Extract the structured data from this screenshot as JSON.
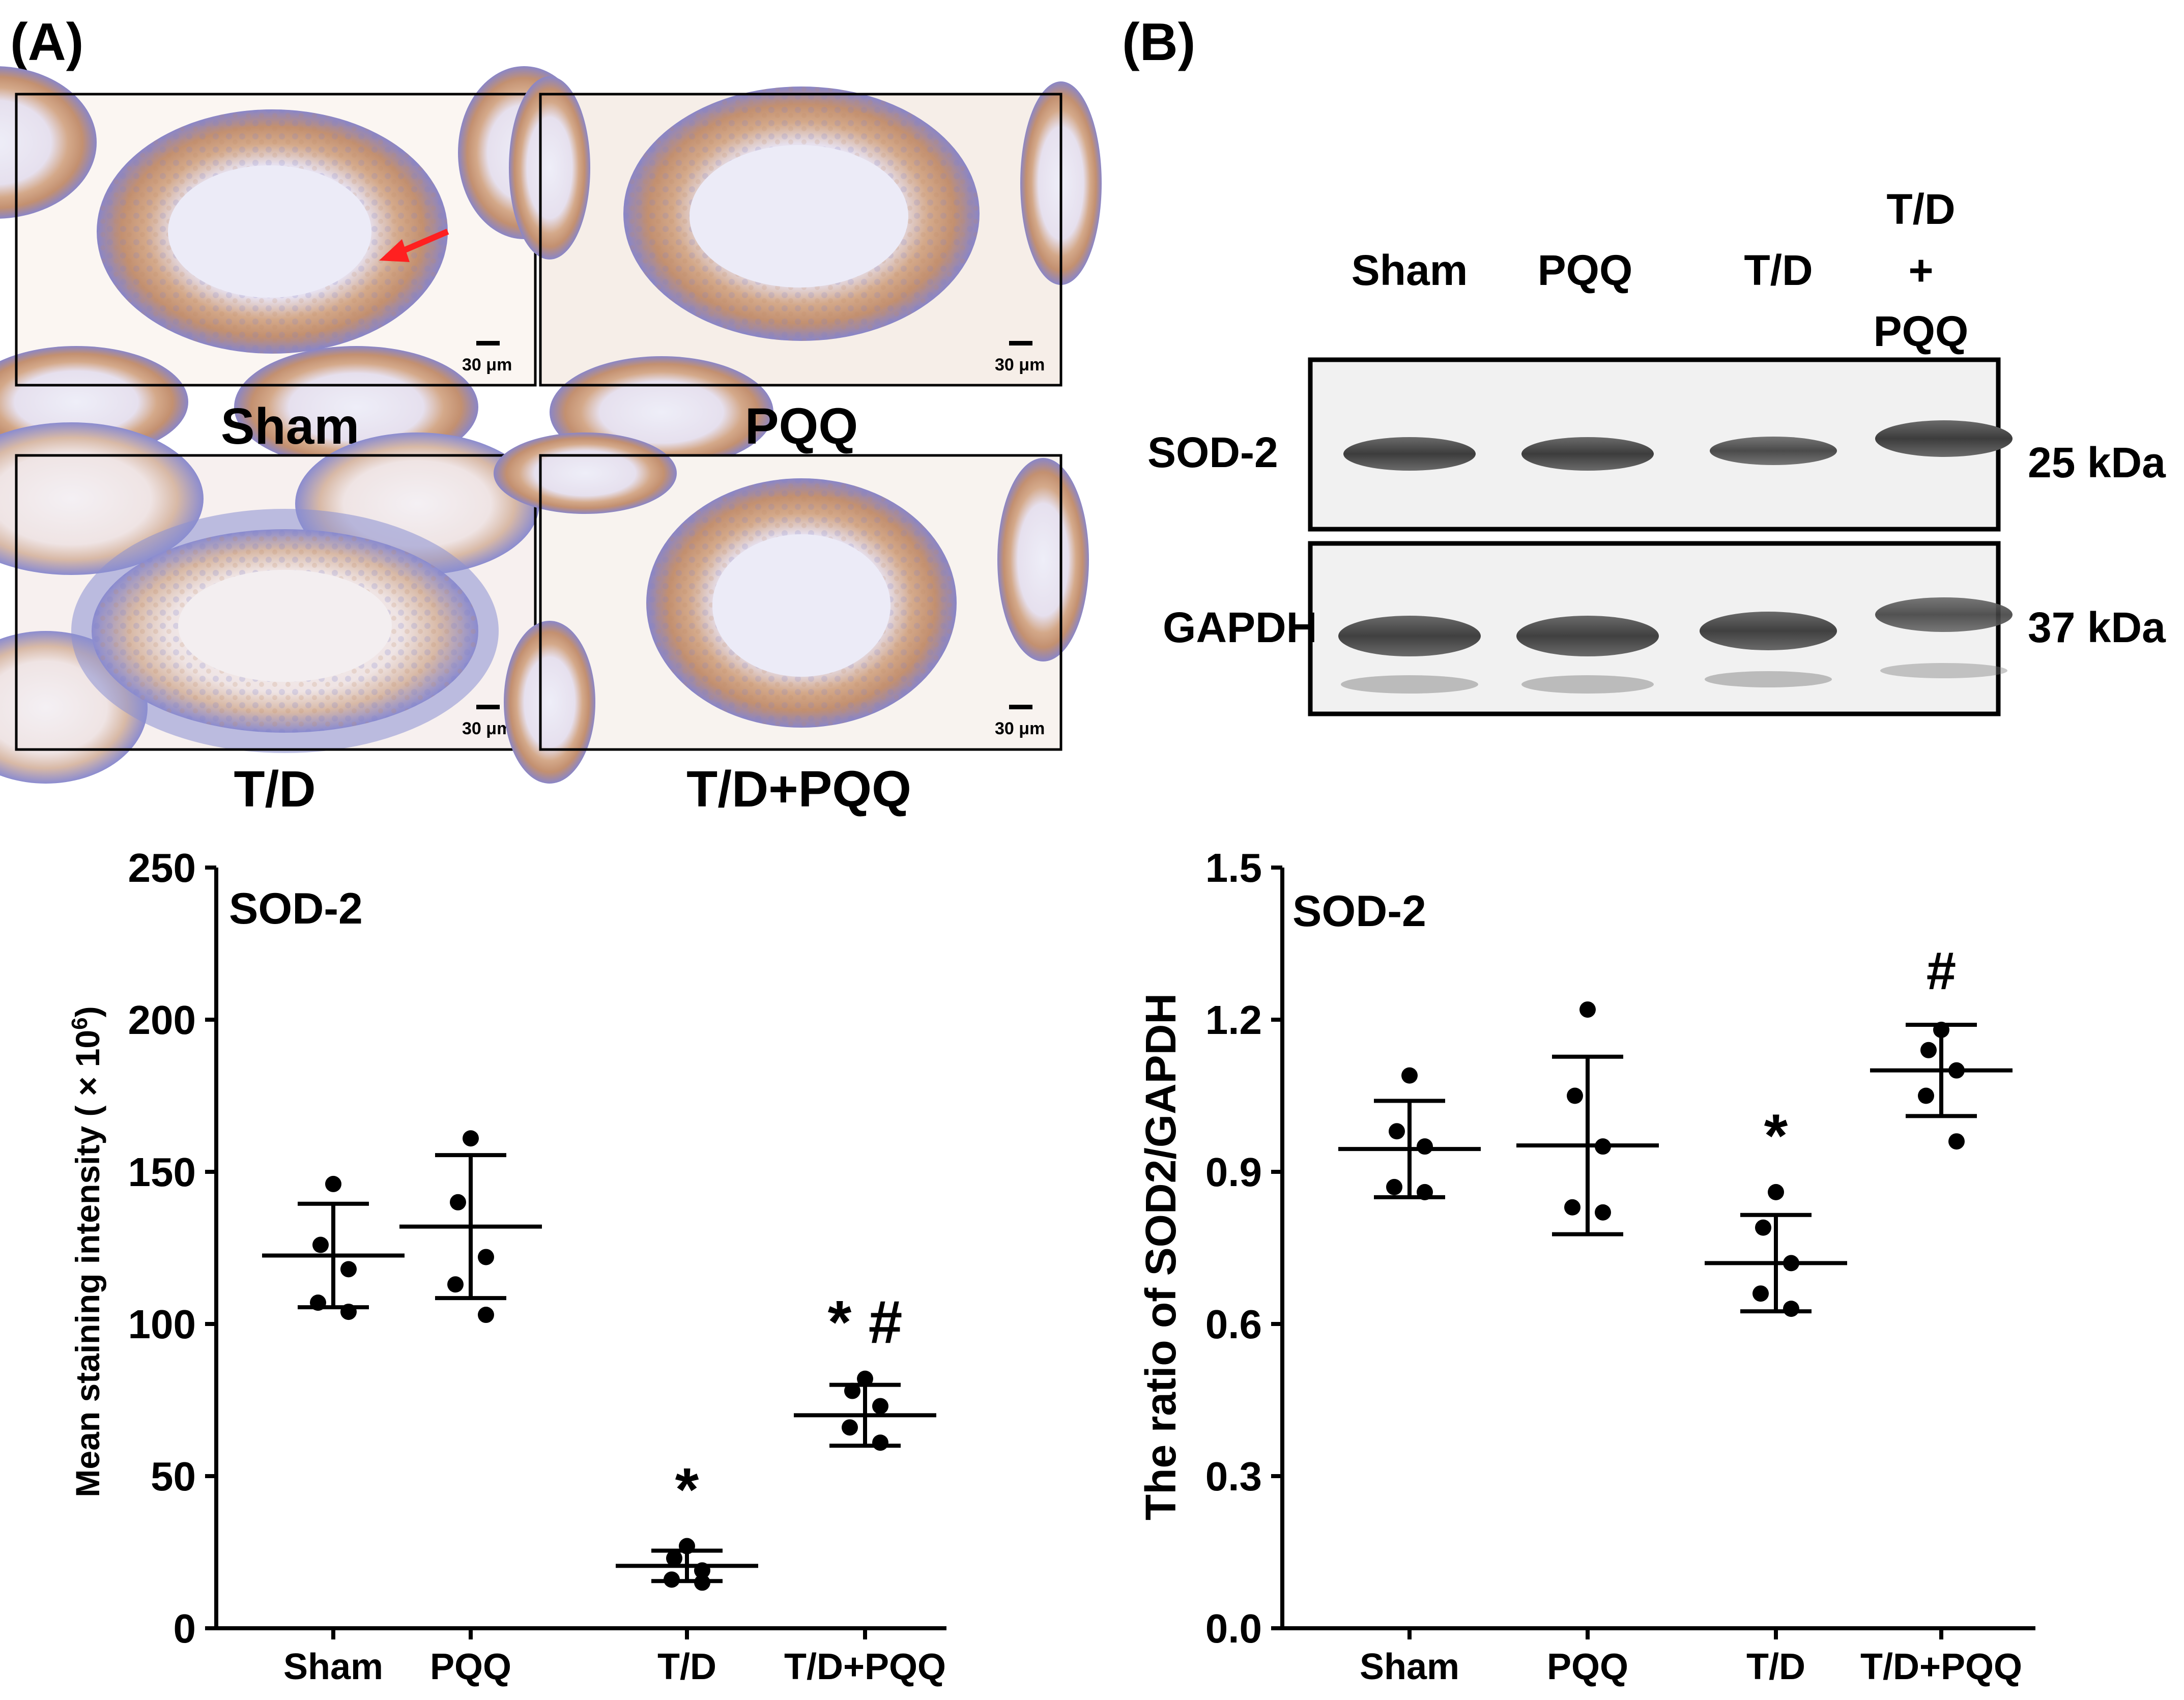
{
  "panel_a": {
    "label": "(A)",
    "scale_bar": "30 μm",
    "histology": [
      {
        "group": "Sham",
        "has_arrow": true
      },
      {
        "group": "PQQ",
        "has_arrow": false
      },
      {
        "group": "T/D",
        "has_arrow": false
      },
      {
        "group": "T/D+PQQ",
        "has_arrow": false
      }
    ]
  },
  "panel_b": {
    "label": "(B)",
    "blot": {
      "lanes": [
        "Sham",
        "PQQ",
        "T/D",
        "T/D\n+\nPQQ"
      ],
      "rows": [
        {
          "protein": "SOD-2",
          "size": "25 kDa"
        },
        {
          "protein": "GAPDH",
          "size": "37 kDa"
        }
      ]
    }
  },
  "colors": {
    "stain_brown": "#b07a4a",
    "hematoxylin_blue": "#6a6fc4",
    "tissue_bg": "#fbf7f3",
    "arrow": "#ff2020",
    "ink": "#000000"
  },
  "chart_data": [
    {
      "type": "scatter",
      "title": "SOD-2",
      "ylabel": "Mean staining intensity ( × 10",
      "ylabel_sup": "6",
      "ylabel_close": ")",
      "xlabel": "",
      "ylim": [
        0,
        250
      ],
      "yticks": [
        "0",
        "50",
        "100",
        "150",
        "200",
        "250"
      ],
      "ytick_values": [
        0,
        50,
        100,
        150,
        200,
        250
      ],
      "categories": [
        "Sham",
        "PQQ",
        "T/D",
        "T/D+PQQ"
      ],
      "series": [
        {
          "name": "Sham",
          "points": [
            146,
            126,
            118,
            107,
            104
          ],
          "mean": 122.5,
          "sd": 17,
          "annotation": ""
        },
        {
          "name": "PQQ",
          "points": [
            161,
            140,
            122,
            113,
            103
          ],
          "mean": 132,
          "sd": 23.5,
          "annotation": ""
        },
        {
          "name": "T/D",
          "points": [
            27,
            23,
            19,
            16,
            15
          ],
          "mean": 20.5,
          "sd": 5,
          "annotation": "*"
        },
        {
          "name": "T/D+PQQ",
          "points": [
            82,
            78,
            73,
            66,
            61
          ],
          "mean": 70,
          "sd": 10,
          "annotation": "* #"
        }
      ]
    },
    {
      "type": "scatter",
      "title": "SOD-2",
      "ylabel": "The ratio of SOD2/GAPDH",
      "xlabel": "",
      "ylim": [
        0,
        1.5
      ],
      "yticks": [
        "0.0",
        "0.3",
        "0.6",
        "0.9",
        "1.2",
        "1.5"
      ],
      "ytick_values": [
        0,
        0.3,
        0.6,
        0.9,
        1.2,
        1.5
      ],
      "categories": [
        "Sham",
        "PQQ",
        "T/D",
        "T/D+PQQ"
      ],
      "series": [
        {
          "name": "Sham",
          "points": [
            1.09,
            0.98,
            0.95,
            0.87,
            0.86
          ],
          "mean": 0.945,
          "sd": 0.095,
          "annotation": ""
        },
        {
          "name": "PQQ",
          "points": [
            1.22,
            1.05,
            0.95,
            0.83,
            0.82
          ],
          "mean": 0.952,
          "sd": 0.175,
          "annotation": ""
        },
        {
          "name": "T/D",
          "points": [
            0.86,
            0.79,
            0.72,
            0.66,
            0.63
          ],
          "mean": 0.72,
          "sd": 0.095,
          "annotation": "*"
        },
        {
          "name": "T/D+PQQ",
          "points": [
            1.18,
            1.14,
            1.1,
            1.05,
            0.96
          ],
          "mean": 1.1,
          "sd": 0.09,
          "annotation": "#"
        }
      ]
    }
  ]
}
